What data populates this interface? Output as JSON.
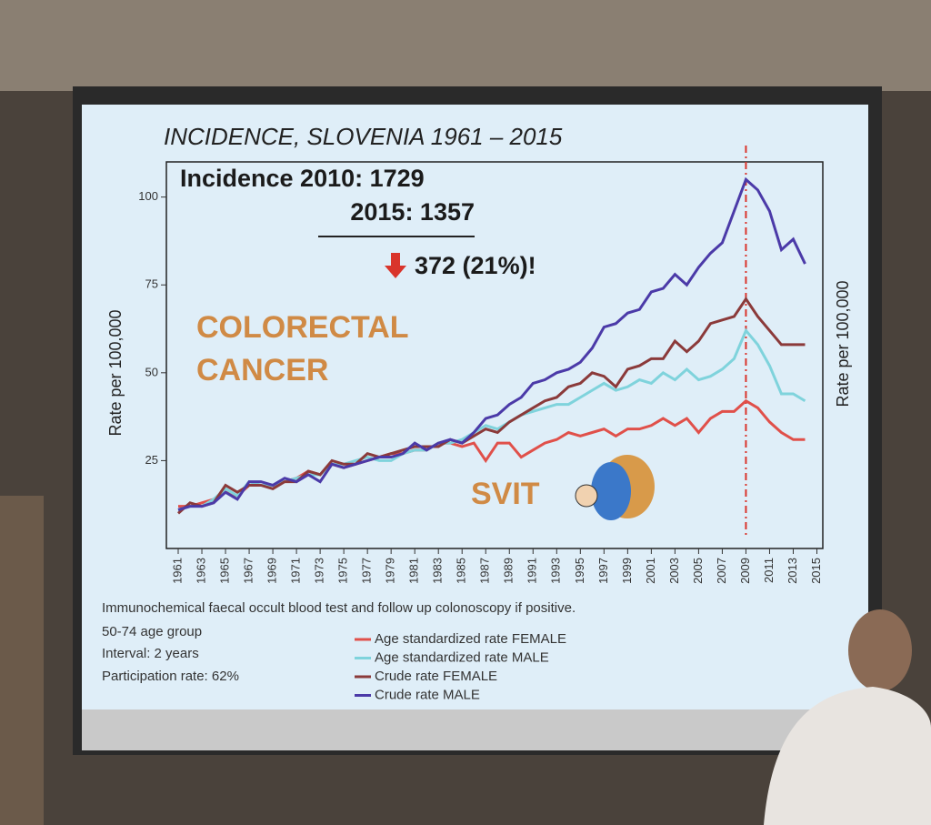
{
  "chart_data": {
    "type": "line",
    "title": "INCIDENCE, SLOVENIA 1961 – 2015",
    "y_label": "Rate per 100,000",
    "y2_label": "Rate per 100,000",
    "annotations": [
      "Incidence 2010: 1729",
      "2015: 1357",
      "372 (21%)!",
      "COLORECTAL",
      "CANCER",
      "SVIT"
    ],
    "notes": [
      "Immunochemical faecal occult blood test and follow up colonoscopy if  positive.",
      "50-74 age group",
      "Interval: 2 years",
      "Participation rate: 62%"
    ],
    "x": [
      1961,
      1962,
      1963,
      1964,
      1965,
      1966,
      1967,
      1968,
      1969,
      1970,
      1971,
      1972,
      1973,
      1974,
      1975,
      1976,
      1977,
      1978,
      1979,
      1980,
      1981,
      1982,
      1983,
      1984,
      1985,
      1986,
      1987,
      1988,
      1989,
      1990,
      1991,
      1992,
      1993,
      1994,
      1995,
      1996,
      1997,
      1998,
      1999,
      2000,
      2001,
      2002,
      2003,
      2004,
      2005,
      2006,
      2007,
      2008,
      2009,
      2010,
      2011,
      2012,
      2013,
      2014
    ],
    "xlim": [
      1960,
      2015.5
    ],
    "xticks": [
      1961,
      1963,
      1965,
      1967,
      1969,
      1971,
      1973,
      1975,
      1977,
      1979,
      1981,
      1983,
      1985,
      1987,
      1989,
      1991,
      1993,
      1995,
      1997,
      1999,
      2001,
      2003,
      2005,
      2007,
      2009,
      2011,
      2013,
      2015
    ],
    "ylim": [
      0,
      110
    ],
    "yticks": [
      25,
      50,
      75,
      100
    ],
    "vline_x": 2009,
    "series": [
      {
        "name": "Age standardized rate FEMALE",
        "color": "#e0504a",
        "values": [
          12,
          12,
          13,
          14,
          16,
          15,
          18,
          18,
          18,
          19,
          20,
          22,
          21,
          24,
          23,
          24,
          25,
          26,
          27,
          27,
          28,
          28,
          30,
          30,
          29,
          30,
          25,
          30,
          30,
          26,
          28,
          30,
          31,
          33,
          32,
          33,
          34,
          32,
          34,
          34,
          35,
          37,
          35,
          37,
          33,
          37,
          39,
          39,
          42,
          40,
          36,
          33,
          31,
          31
        ]
      },
      {
        "name": "Age standardized rate MALE",
        "color": "#7fd3dc",
        "values": [
          11,
          12,
          12,
          14,
          17,
          15,
          19,
          18,
          18,
          19,
          20,
          21,
          21,
          24,
          24,
          25,
          26,
          25,
          25,
          27,
          28,
          28,
          30,
          30,
          31,
          33,
          35,
          34,
          36,
          38,
          39,
          40,
          41,
          41,
          43,
          45,
          47,
          45,
          46,
          48,
          47,
          50,
          48,
          51,
          48,
          49,
          51,
          54,
          62,
          58,
          52,
          44,
          44,
          42
        ]
      },
      {
        "name": "Crude rate FEMALE",
        "color": "#8b3a3a",
        "values": [
          10,
          13,
          12,
          13,
          18,
          16,
          18,
          18,
          17,
          19,
          19,
          22,
          21,
          25,
          24,
          24,
          27,
          26,
          27,
          28,
          29,
          29,
          29,
          31,
          30,
          32,
          34,
          33,
          36,
          38,
          40,
          42,
          43,
          46,
          47,
          50,
          49,
          46,
          51,
          52,
          54,
          54,
          59,
          56,
          59,
          64,
          65,
          66,
          71,
          66,
          62,
          58,
          58,
          58
        ]
      },
      {
        "name": "Crude rate MALE",
        "color": "#4b3aa8",
        "values": [
          11,
          12,
          12,
          13,
          16,
          14,
          19,
          19,
          18,
          20,
          19,
          21,
          19,
          24,
          23,
          24,
          25,
          26,
          26,
          27,
          30,
          28,
          30,
          31,
          30,
          33,
          37,
          38,
          41,
          43,
          47,
          48,
          50,
          51,
          53,
          57,
          63,
          64,
          67,
          68,
          73,
          74,
          78,
          75,
          80,
          84,
          87,
          96,
          105,
          102,
          96,
          85,
          88,
          81
        ]
      }
    ]
  }
}
